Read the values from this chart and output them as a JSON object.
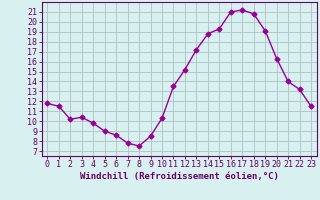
{
  "x": [
    0,
    1,
    2,
    3,
    4,
    5,
    6,
    7,
    8,
    9,
    10,
    11,
    12,
    13,
    14,
    15,
    16,
    17,
    18,
    19,
    20,
    21,
    22,
    23
  ],
  "y": [
    11.8,
    11.5,
    10.2,
    10.4,
    9.8,
    9.0,
    8.6,
    7.8,
    7.5,
    8.5,
    10.3,
    13.5,
    15.2,
    17.2,
    18.8,
    19.3,
    21.0,
    21.2,
    20.8,
    19.1,
    16.3,
    14.0,
    13.2,
    11.5
  ],
  "line_color": "#990099",
  "marker": "D",
  "markersize": 2.5,
  "linewidth": 1.0,
  "bg_color": "#d8f0f0",
  "grid_color": "#b0c8c8",
  "xlabel": "Windchill (Refroidissement éolien,°C)",
  "xlabel_fontsize": 6.5,
  "ylabel_ticks": [
    7,
    8,
    9,
    10,
    11,
    12,
    13,
    14,
    15,
    16,
    17,
    18,
    19,
    20,
    21
  ],
  "ylim": [
    6.5,
    22.0
  ],
  "xlim": [
    -0.5,
    23.5
  ],
  "tick_fontsize": 6.0,
  "axis_color": "#660066"
}
